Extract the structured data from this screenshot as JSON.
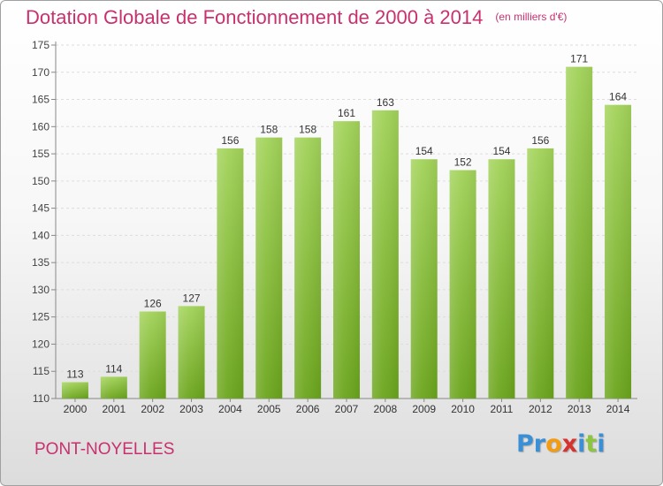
{
  "chart_data": {
    "type": "bar",
    "title": "Dotation Globale de Fonctionnement de 2000 à 2014",
    "subtitle": "(en milliers d'€)",
    "categories": [
      "2000",
      "2001",
      "2002",
      "2003",
      "2004",
      "2005",
      "2006",
      "2007",
      "2008",
      "2009",
      "2010",
      "2011",
      "2012",
      "2013",
      "2014"
    ],
    "values": [
      113,
      114,
      126,
      127,
      156,
      158,
      158,
      161,
      163,
      154,
      152,
      154,
      156,
      171,
      164
    ],
    "ylim": [
      110,
      175
    ],
    "yticks": [
      110,
      115,
      120,
      125,
      130,
      135,
      140,
      145,
      150,
      155,
      160,
      165,
      170,
      175
    ],
    "grid": true,
    "bar_color_top": "#a3d35a",
    "bar_color_bottom": "#6ba51c"
  },
  "footer": {
    "commune": "PONT-NOYELLES",
    "logo_letters": [
      "P",
      "r",
      "o",
      "x",
      "i",
      "t",
      "i"
    ],
    "logo_colors": [
      "#3a8fd6",
      "#3a8fd6",
      "#f39c12",
      "#d6332f",
      "#3a8fd6",
      "#8cc63f",
      "#3a8fd6"
    ]
  }
}
